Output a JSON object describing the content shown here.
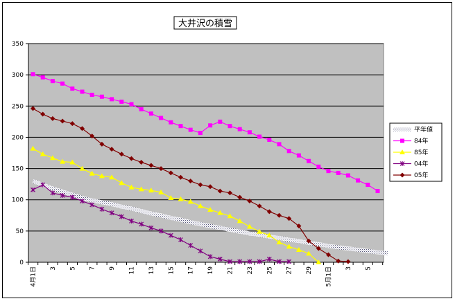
{
  "chart_data": {
    "type": "line",
    "title": "大井沢の積雪",
    "xlabel": "",
    "ylabel": "",
    "ylim": [
      0,
      350
    ],
    "yticks": [
      0,
      50,
      100,
      150,
      200,
      250,
      300,
      350
    ],
    "grid": true,
    "legend_position": "right",
    "categories": [
      "4月1日",
      "2",
      "3",
      "4",
      "5",
      "6",
      "7",
      "8",
      "9",
      "10",
      "11",
      "12",
      "13",
      "14",
      "15",
      "16",
      "17",
      "18",
      "19",
      "20",
      "21",
      "22",
      "23",
      "24",
      "25",
      "26",
      "27",
      "28",
      "29",
      "30",
      "5月1日",
      "2",
      "3",
      "4",
      "5",
      "6",
      "7"
    ],
    "xtick_labels": [
      "4月1日",
      "3",
      "5",
      "7",
      "9",
      "11",
      "13",
      "15",
      "17",
      "19",
      "21",
      "23",
      "25",
      "27",
      "29",
      "5月1日",
      "3",
      "5"
    ],
    "series": [
      {
        "name": "平年値",
        "color": "#a9a9c9",
        "marker": "none",
        "values": [
          130,
          124,
          118,
          113,
          108,
          103,
          99,
          96,
          93,
          89,
          86,
          82,
          78,
          75,
          71,
          68,
          64,
          61,
          58,
          55,
          52,
          49,
          46,
          44,
          41,
          39,
          36,
          34,
          31,
          29,
          26,
          24,
          22,
          20,
          18,
          16,
          14
        ]
      },
      {
        "name": "84年",
        "color": "#ff00ff",
        "marker": "square",
        "values": [
          301,
          296,
          290,
          286,
          278,
          273,
          268,
          265,
          261,
          257,
          253,
          245,
          238,
          231,
          224,
          218,
          212,
          207,
          219,
          225,
          218,
          213,
          208,
          201,
          196,
          189,
          178,
          171,
          162,
          153,
          146,
          143,
          139,
          131,
          124,
          114,
          null
        ]
      },
      {
        "name": "85年",
        "color": "#ffff00",
        "marker": "triangle",
        "values": [
          182,
          173,
          167,
          161,
          160,
          150,
          142,
          138,
          136,
          127,
          120,
          117,
          115,
          112,
          103,
          101,
          97,
          90,
          84,
          79,
          74,
          66,
          57,
          49,
          43,
          32,
          25,
          20,
          14,
          0,
          null,
          null,
          null,
          null,
          null,
          null,
          null
        ]
      },
      {
        "name": "04年",
        "color": "#800080",
        "marker": "asterisk",
        "values": [
          116,
          124,
          111,
          107,
          104,
          98,
          92,
          85,
          79,
          73,
          66,
          61,
          55,
          50,
          43,
          36,
          27,
          18,
          9,
          5,
          1,
          1,
          1,
          1,
          5,
          1,
          1,
          null,
          null,
          null,
          null,
          null,
          null,
          null,
          null,
          null,
          null
        ]
      },
      {
        "name": "05年",
        "color": "#800000",
        "marker": "diamond",
        "values": [
          246,
          237,
          230,
          226,
          222,
          214,
          202,
          189,
          181,
          173,
          166,
          160,
          155,
          150,
          143,
          136,
          130,
          124,
          121,
          114,
          111,
          104,
          98,
          90,
          81,
          75,
          70,
          58,
          34,
          22,
          12,
          2,
          1,
          null,
          null,
          null,
          null
        ]
      }
    ]
  }
}
